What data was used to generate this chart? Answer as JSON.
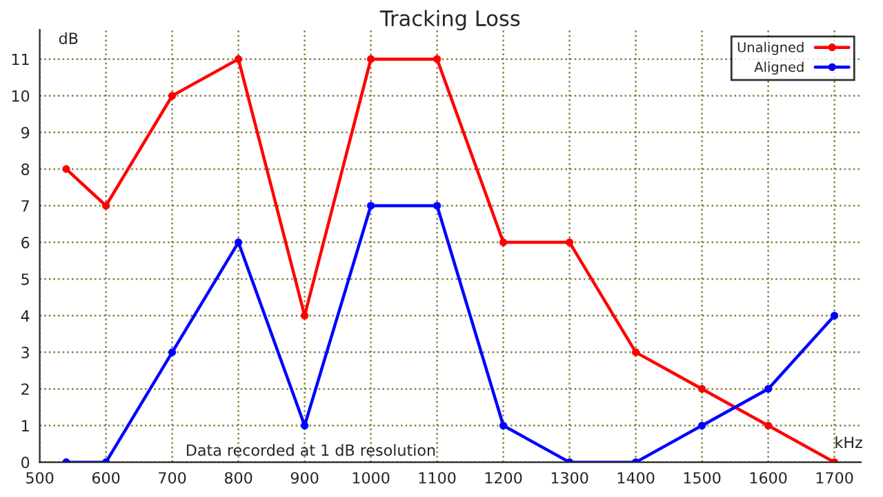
{
  "chart_data": {
    "type": "line",
    "title": "Tracking Loss",
    "xlabel": "kHz",
    "ylabel": "dB",
    "x": [
      540,
      600,
      700,
      800,
      900,
      1000,
      1100,
      1200,
      1300,
      1400,
      1500,
      1600,
      1700
    ],
    "series": [
      {
        "name": "Unaligned",
        "color": "#ff0000",
        "values": [
          8,
          7,
          10,
          11,
          4,
          11,
          11,
          6,
          6,
          3,
          2,
          1,
          0
        ]
      },
      {
        "name": "Aligned",
        "color": "#0000ff",
        "values": [
          0,
          0,
          3,
          6,
          1,
          7,
          7,
          1,
          0,
          0,
          1,
          2,
          4
        ]
      }
    ],
    "xlim": [
      500,
      1740
    ],
    "ylim": [
      0,
      11.8
    ],
    "xticks": [
      500,
      600,
      700,
      800,
      900,
      1000,
      1100,
      1200,
      1300,
      1400,
      1500,
      1600,
      1700
    ],
    "yticks": [
      0,
      1,
      2,
      3,
      4,
      5,
      6,
      7,
      8,
      9,
      10,
      11
    ],
    "grid": true,
    "legend": "top right",
    "marker": "circle",
    "line_style": "solid",
    "annotations": [
      "Data recorded at 1 dB resolution"
    ]
  }
}
